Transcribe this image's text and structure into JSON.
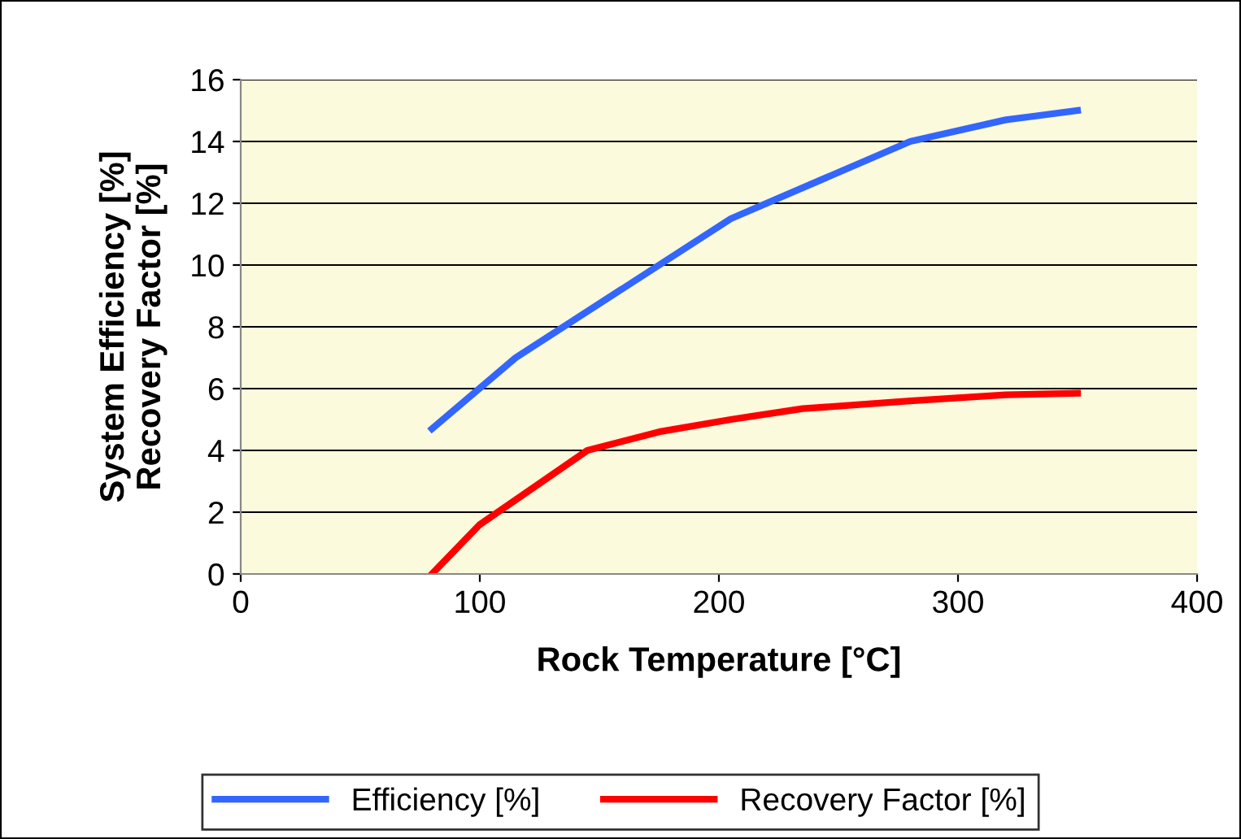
{
  "chart_data": {
    "type": "line",
    "xlabel": "Rock Temperature [°C]",
    "ylabel": "System Efficiency [%]\nRecovery Factor [%]",
    "xlim": [
      0,
      400
    ],
    "xticks": [
      0,
      100,
      200,
      300,
      400
    ],
    "ylim": [
      0,
      16
    ],
    "yticks": [
      0,
      2,
      4,
      6,
      8,
      10,
      12,
      14,
      16
    ],
    "grid": "y",
    "legend": "bottom",
    "marker": "none",
    "line_style": "solid",
    "series": [
      {
        "name": "Efficiency [%]",
        "color": "#3366ff",
        "x": [
          80,
          115,
          205,
          280,
          320,
          350
        ],
        "values": [
          4.7,
          7.0,
          11.5,
          14.0,
          14.7,
          15.0
        ]
      },
      {
        "name": "Recovery Factor [%]",
        "color": "#ff0000",
        "x": [
          80,
          100,
          145,
          175,
          205,
          235,
          280,
          320,
          350
        ],
        "values": [
          0,
          1.6,
          4.0,
          4.6,
          5.0,
          5.35,
          5.6,
          5.8,
          5.85
        ]
      }
    ]
  }
}
